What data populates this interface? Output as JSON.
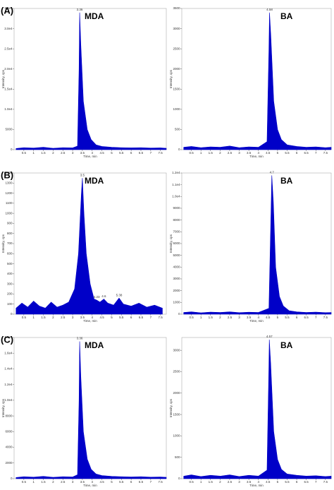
{
  "chart_data": [
    {
      "type": "area",
      "panel_label": "(A)",
      "title": "MDA",
      "xlabel": "Time, min",
      "ylabel": "Intensity, cps",
      "x": [
        0.1,
        0.5,
        1.0,
        1.5,
        2.0,
        2.5,
        3.0,
        3.25,
        3.33,
        3.36,
        3.42,
        3.55,
        3.75,
        3.95,
        4.2,
        4.5,
        5.0,
        5.5,
        6.0,
        6.5,
        7.0,
        7.5,
        7.8
      ],
      "series": [
        {
          "color": "#0000c8",
          "values": [
            300,
            500,
            400,
            600,
            350,
            500,
            450,
            900,
            20000,
            34000,
            26000,
            12000,
            5000,
            2500,
            1200,
            800,
            600,
            500,
            450,
            500,
            400,
            450,
            350
          ]
        }
      ],
      "peak_labels": [
        3.36
      ],
      "xlim": [
        0,
        7.8
      ],
      "xticks": [
        0.5,
        1.0,
        1.5,
        2.0,
        2.5,
        3.0,
        3.5,
        4.0,
        4.5,
        5.0,
        5.5,
        6.0,
        6.5,
        7.0,
        7.5
      ],
      "ylim": [
        0,
        35000
      ],
      "yticks": [
        0,
        5000,
        {
          "value": 10000,
          "label": "1.0e4"
        },
        {
          "value": 15000,
          "label": "1.5e4"
        },
        {
          "value": 20000,
          "label": "2.0e4"
        },
        {
          "value": 25000,
          "label": "2.5e4"
        },
        {
          "value": 30000,
          "label": "3.0e4"
        },
        {
          "value": 35000,
          "label": "3.5e4"
        }
      ]
    },
    {
      "type": "area",
      "title": "BA",
      "xlabel": "Time, min",
      "ylabel": "Intensity, cps",
      "x": [
        0.1,
        0.5,
        1.0,
        1.5,
        2.0,
        2.5,
        3.0,
        3.5,
        4.0,
        4.45,
        4.55,
        4.58,
        4.65,
        4.8,
        5.0,
        5.2,
        5.5,
        6.0,
        6.5,
        7.0,
        7.5,
        7.8
      ],
      "series": [
        {
          "color": "#0000c8",
          "values": [
            60,
            80,
            50,
            70,
            60,
            90,
            50,
            70,
            60,
            200,
            2500,
            3400,
            2800,
            1200,
            500,
            250,
            120,
            80,
            60,
            70,
            50,
            60
          ]
        }
      ],
      "peak_labels": [
        4.58
      ],
      "xlim": [
        0,
        7.8
      ],
      "xticks": [
        0.5,
        1.0,
        1.5,
        2.0,
        2.5,
        3.0,
        3.5,
        4.0,
        4.5,
        5.0,
        5.5,
        6.0,
        6.5,
        7.0,
        7.5
      ],
      "ylim": [
        0,
        3500
      ],
      "yticks": [
        0,
        500,
        1000,
        1500,
        2000,
        2500,
        3000,
        3500
      ]
    },
    {
      "type": "area",
      "panel_label": "(B)",
      "title": "MDA",
      "xlabel": "Time, min",
      "ylabel": "Intensity, cps",
      "x": [
        0.1,
        0.4,
        0.7,
        1.0,
        1.3,
        1.6,
        1.9,
        2.2,
        2.5,
        2.8,
        3.1,
        3.3,
        3.45,
        3.5,
        3.58,
        3.7,
        3.9,
        4.1,
        4.23,
        4.4,
        4.6,
        4.8,
        5.1,
        5.38,
        5.6,
        6.0,
        6.4,
        6.8,
        7.2,
        7.6
      ],
      "series": [
        {
          "color": "#0000c8",
          "values": [
            60,
            110,
            70,
            130,
            80,
            60,
            120,
            70,
            90,
            120,
            250,
            600,
            1200,
            1350,
            1000,
            600,
            300,
            150,
            140,
            120,
            150,
            110,
            90,
            160,
            100,
            80,
            110,
            70,
            90,
            60
          ]
        }
      ],
      "peak_labels": [
        3.5,
        4.23,
        4.6,
        5.38
      ],
      "xlim": [
        0,
        7.8
      ],
      "xticks": [
        0.5,
        1.0,
        1.5,
        2.0,
        2.5,
        3.0,
        3.5,
        4.0,
        4.5,
        5.0,
        5.5,
        6.0,
        6.5,
        7.0,
        7.5
      ],
      "ylim": [
        0,
        1400
      ],
      "yticks": [
        0,
        100,
        200,
        300,
        400,
        500,
        600,
        700,
        800,
        900,
        1000,
        1100,
        1200,
        1300,
        1400
      ]
    },
    {
      "type": "area",
      "title": "BA",
      "xlabel": "Time, min",
      "ylabel": "Intensity, cps",
      "x": [
        0.1,
        0.5,
        1.0,
        1.5,
        2.0,
        2.5,
        3.0,
        3.5,
        4.0,
        4.55,
        4.65,
        4.7,
        4.78,
        4.9,
        5.1,
        5.3,
        5.6,
        6.0,
        6.5,
        7.0,
        7.5,
        7.8
      ],
      "series": [
        {
          "color": "#0000c8",
          "values": [
            150,
            200,
            120,
            180,
            150,
            200,
            130,
            170,
            150,
            500,
            8000,
            11800,
            9500,
            4000,
            1500,
            700,
            300,
            200,
            150,
            180,
            130,
            150
          ]
        }
      ],
      "peak_labels": [
        4.7
      ],
      "xlim": [
        0,
        7.8
      ],
      "xticks": [
        0.5,
        1.0,
        1.5,
        2.0,
        2.5,
        3.0,
        3.5,
        4.0,
        4.5,
        5.0,
        5.5,
        6.0,
        6.5,
        7.0,
        7.5
      ],
      "ylim": [
        0,
        12000
      ],
      "yticks": [
        0,
        1000,
        2000,
        3000,
        4000,
        5000,
        6000,
        7000,
        8000,
        9000,
        {
          "value": 10000,
          "label": "1.0e4"
        },
        {
          "value": 11000,
          "label": "1.1e4"
        },
        {
          "value": 12000,
          "label": "1.2e4"
        }
      ]
    },
    {
      "type": "area",
      "panel_label": "(C)",
      "title": "MDA",
      "xlabel": "Time, min",
      "ylabel": "Intensity, cps",
      "x": [
        0.1,
        0.5,
        1.0,
        1.5,
        2.0,
        2.5,
        3.0,
        3.25,
        3.33,
        3.36,
        3.42,
        3.55,
        3.75,
        3.95,
        4.2,
        4.5,
        5.0,
        5.5,
        6.0,
        6.5,
        7.0,
        7.5,
        7.8
      ],
      "series": [
        {
          "color": "#0000c8",
          "values": [
            150,
            250,
            200,
            300,
            180,
            250,
            220,
            500,
            10000,
            17500,
            13000,
            6000,
            2500,
            1200,
            600,
            400,
            300,
            250,
            220,
            250,
            200,
            220,
            180
          ]
        }
      ],
      "peak_labels": [
        3.36
      ],
      "xlim": [
        0,
        7.8
      ],
      "xticks": [
        0.5,
        1.0,
        1.5,
        2.0,
        2.5,
        3.0,
        3.5,
        4.0,
        4.5,
        5.0,
        5.5,
        6.0,
        6.5,
        7.0,
        7.5
      ],
      "ylim": [
        0,
        18000
      ],
      "yticks": [
        0,
        2000,
        4000,
        6000,
        8000,
        {
          "value": 10000,
          "label": "1.0e4"
        },
        {
          "value": 12000,
          "label": "1.2e4"
        },
        {
          "value": 14000,
          "label": "1.4e4"
        },
        {
          "value": 16000,
          "label": "1.6e4"
        },
        {
          "value": 18000,
          "label": "1.8e4"
        }
      ]
    },
    {
      "type": "area",
      "title": "BA",
      "xlabel": "Time, min",
      "ylabel": "Intensity, cps",
      "x": [
        0.1,
        0.5,
        1.0,
        1.5,
        2.0,
        2.5,
        3.0,
        3.5,
        4.0,
        4.45,
        4.54,
        4.57,
        4.64,
        4.8,
        5.0,
        5.2,
        5.5,
        6.0,
        6.5,
        7.0,
        7.5,
        7.8
      ],
      "series": [
        {
          "color": "#0000c8",
          "values": [
            60,
            90,
            50,
            80,
            60,
            90,
            50,
            80,
            60,
            200,
            2400,
            3250,
            2700,
            1100,
            450,
            220,
            110,
            80,
            60,
            70,
            50,
            60
          ]
        }
      ],
      "peak_labels": [
        4.57
      ],
      "xlim": [
        0,
        7.8
      ],
      "xticks": [
        0.5,
        1.0,
        1.5,
        2.0,
        2.5,
        3.0,
        3.5,
        4.0,
        4.5,
        5.0,
        5.5,
        6.0,
        6.5,
        7.0,
        7.5
      ],
      "ylim": [
        0,
        3300
      ],
      "yticks": [
        0,
        500,
        1000,
        1500,
        2000,
        2500,
        3000
      ]
    }
  ]
}
